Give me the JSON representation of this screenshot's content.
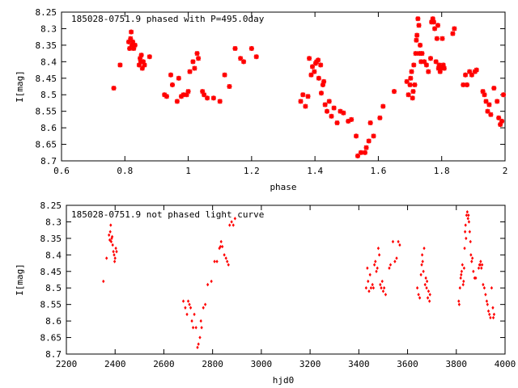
{
  "colors": {
    "points": "#ff0000",
    "axes": "#000000",
    "background": "#ffffff"
  },
  "chart_data": [
    {
      "type": "scatter",
      "title": "185028-0751.9 phased with P=495.0day",
      "xlabel": "phase",
      "ylabel": "I[mag]",
      "xlim": [
        0.6,
        2.0
      ],
      "ylim": [
        8.25,
        8.7
      ],
      "y_inverted": true,
      "grid": false,
      "marker": "star",
      "xticks": [
        "0.6",
        "0.8",
        "1",
        "1.2",
        "1.4",
        "1.6",
        "1.8",
        "2"
      ],
      "yticks": [
        "8.25",
        "8.3",
        "8.35",
        "8.4",
        "8.45",
        "8.5",
        "8.55",
        "8.6",
        "8.65",
        "8.7"
      ],
      "points": [
        [
          0.765,
          8.48
        ],
        [
          0.785,
          8.41
        ],
        [
          0.812,
          8.34
        ],
        [
          0.815,
          8.36
        ],
        [
          0.818,
          8.33
        ],
        [
          0.82,
          8.31
        ],
        [
          0.822,
          8.35
        ],
        [
          0.825,
          8.34
        ],
        [
          0.828,
          8.36
        ],
        [
          0.832,
          8.35
        ],
        [
          0.845,
          8.41
        ],
        [
          0.848,
          8.39
        ],
        [
          0.85,
          8.4
        ],
        [
          0.852,
          8.38
        ],
        [
          0.855,
          8.42
        ],
        [
          0.858,
          8.4
        ],
        [
          0.862,
          8.41
        ],
        [
          0.878,
          8.385
        ],
        [
          0.925,
          8.5
        ],
        [
          0.932,
          8.505
        ],
        [
          0.945,
          8.44
        ],
        [
          0.95,
          8.47
        ],
        [
          0.965,
          8.52
        ],
        [
          0.97,
          8.45
        ],
        [
          0.978,
          8.505
        ],
        [
          0.985,
          8.5
        ],
        [
          0.995,
          8.5
        ],
        [
          1.0,
          8.49
        ],
        [
          1.005,
          8.43
        ],
        [
          1.015,
          8.4
        ],
        [
          1.02,
          8.42
        ],
        [
          1.028,
          8.375
        ],
        [
          1.032,
          8.39
        ],
        [
          1.045,
          8.49
        ],
        [
          1.05,
          8.5
        ],
        [
          1.06,
          8.51
        ],
        [
          1.08,
          8.51
        ],
        [
          1.1,
          8.52
        ],
        [
          1.115,
          8.44
        ],
        [
          1.13,
          8.475
        ],
        [
          1.148,
          8.36
        ],
        [
          1.165,
          8.39
        ],
        [
          1.175,
          8.4
        ],
        [
          1.2,
          8.36
        ],
        [
          1.215,
          8.385
        ],
        [
          1.355,
          8.52
        ],
        [
          1.362,
          8.5
        ],
        [
          1.37,
          8.535
        ],
        [
          1.378,
          8.505
        ],
        [
          1.382,
          8.39
        ],
        [
          1.388,
          8.44
        ],
        [
          1.392,
          8.415
        ],
        [
          1.398,
          8.43
        ],
        [
          1.402,
          8.405
        ],
        [
          1.405,
          8.4
        ],
        [
          1.41,
          8.395
        ],
        [
          1.412,
          8.45
        ],
        [
          1.418,
          8.41
        ],
        [
          1.42,
          8.495
        ],
        [
          1.425,
          8.47
        ],
        [
          1.428,
          8.46
        ],
        [
          1.432,
          8.53
        ],
        [
          1.438,
          8.55
        ],
        [
          1.445,
          8.52
        ],
        [
          1.452,
          8.565
        ],
        [
          1.46,
          8.54
        ],
        [
          1.47,
          8.585
        ],
        [
          1.48,
          8.55
        ],
        [
          1.49,
          8.555
        ],
        [
          1.505,
          8.58
        ],
        [
          1.515,
          8.575
        ],
        [
          1.53,
          8.625
        ],
        [
          1.535,
          8.685
        ],
        [
          1.545,
          8.675
        ],
        [
          1.558,
          8.675
        ],
        [
          1.562,
          8.66
        ],
        [
          1.57,
          8.64
        ],
        [
          1.575,
          8.585
        ],
        [
          1.585,
          8.625
        ],
        [
          1.605,
          8.57
        ],
        [
          1.615,
          8.535
        ],
        [
          1.65,
          8.49
        ],
        [
          1.69,
          8.46
        ],
        [
          1.695,
          8.5
        ],
        [
          1.7,
          8.47
        ],
        [
          1.702,
          8.45
        ],
        [
          1.705,
          8.43
        ],
        [
          1.708,
          8.51
        ],
        [
          1.71,
          8.49
        ],
        [
          1.712,
          8.41
        ],
        [
          1.715,
          8.47
        ],
        [
          1.718,
          8.375
        ],
        [
          1.72,
          8.335
        ],
        [
          1.722,
          8.32
        ],
        [
          1.725,
          8.27
        ],
        [
          1.728,
          8.29
        ],
        [
          1.73,
          8.375
        ],
        [
          1.732,
          8.35
        ],
        [
          1.735,
          8.4
        ],
        [
          1.738,
          8.375
        ],
        [
          1.745,
          8.4
        ],
        [
          1.752,
          8.41
        ],
        [
          1.758,
          8.43
        ],
        [
          1.765,
          8.39
        ],
        [
          1.768,
          8.28
        ],
        [
          1.772,
          8.27
        ],
        [
          1.775,
          8.28
        ],
        [
          1.778,
          8.3
        ],
        [
          1.782,
          8.4
        ],
        [
          1.785,
          8.33
        ],
        [
          1.788,
          8.29
        ],
        [
          1.79,
          8.42
        ],
        [
          1.792,
          8.41
        ],
        [
          1.795,
          8.43
        ],
        [
          1.798,
          8.42
        ],
        [
          1.802,
          8.33
        ],
        [
          1.805,
          8.41
        ],
        [
          1.808,
          8.42
        ],
        [
          1.835,
          8.315
        ],
        [
          1.84,
          8.3
        ],
        [
          1.868,
          8.47
        ],
        [
          1.875,
          8.44
        ],
        [
          1.88,
          8.47
        ],
        [
          1.888,
          8.43
        ],
        [
          1.895,
          8.44
        ],
        [
          1.905,
          8.43
        ],
        [
          1.91,
          8.425
        ],
        [
          1.93,
          8.49
        ],
        [
          1.935,
          8.5
        ],
        [
          1.94,
          8.52
        ],
        [
          1.945,
          8.55
        ],
        [
          1.95,
          8.53
        ],
        [
          1.955,
          8.56
        ],
        [
          1.965,
          8.48
        ],
        [
          1.975,
          8.52
        ],
        [
          1.98,
          8.57
        ],
        [
          1.985,
          8.59
        ],
        [
          1.99,
          8.58
        ],
        [
          1.995,
          8.5
        ]
      ]
    },
    {
      "type": "scatter",
      "title": "185028-0751.9 not phased light curve",
      "xlabel": "hjd0",
      "ylabel": "I[mag]",
      "xlim": [
        2200,
        4000
      ],
      "ylim": [
        8.25,
        8.7
      ],
      "y_inverted": true,
      "grid": false,
      "marker": "diamond",
      "xticks": [
        "2200",
        "2400",
        "2600",
        "2800",
        "3000",
        "3200",
        "3400",
        "3600",
        "3800",
        "4000"
      ],
      "yticks": [
        "8.25",
        "8.3",
        "8.35",
        "8.4",
        "8.45",
        "8.5",
        "8.55",
        "8.6",
        "8.65",
        "8.7"
      ],
      "points": [
        [
          2352,
          8.48
        ],
        [
          2365,
          8.41
        ],
        [
          2375,
          8.34
        ],
        [
          2378,
          8.355
        ],
        [
          2380,
          8.33
        ],
        [
          2382,
          8.31
        ],
        [
          2384,
          8.36
        ],
        [
          2386,
          8.35
        ],
        [
          2388,
          8.345
        ],
        [
          2390,
          8.37
        ],
        [
          2393,
          8.39
        ],
        [
          2396,
          8.4
        ],
        [
          2398,
          8.42
        ],
        [
          2400,
          8.41
        ],
        [
          2403,
          8.38
        ],
        [
          2406,
          8.39
        ],
        [
          2680,
          8.54
        ],
        [
          2688,
          8.56
        ],
        [
          2695,
          8.58
        ],
        [
          2700,
          8.54
        ],
        [
          2705,
          8.55
        ],
        [
          2710,
          8.56
        ],
        [
          2715,
          8.6
        ],
        [
          2720,
          8.62
        ],
        [
          2725,
          8.58
        ],
        [
          2732,
          8.62
        ],
        [
          2738,
          8.68
        ],
        [
          2742,
          8.67
        ],
        [
          2748,
          8.65
        ],
        [
          2752,
          8.6
        ],
        [
          2755,
          8.62
        ],
        [
          2762,
          8.56
        ],
        [
          2770,
          8.55
        ],
        [
          2780,
          8.49
        ],
        [
          2795,
          8.48
        ],
        [
          2808,
          8.42
        ],
        [
          2818,
          8.42
        ],
        [
          2828,
          8.38
        ],
        [
          2832,
          8.375
        ],
        [
          2835,
          8.36
        ],
        [
          2840,
          8.375
        ],
        [
          2848,
          8.4
        ],
        [
          2855,
          8.41
        ],
        [
          2860,
          8.42
        ],
        [
          2865,
          8.43
        ],
        [
          2870,
          8.31
        ],
        [
          2878,
          8.3
        ],
        [
          2885,
          8.31
        ],
        [
          2892,
          8.29
        ],
        [
          3430,
          8.5
        ],
        [
          3435,
          8.44
        ],
        [
          3438,
          8.48
        ],
        [
          3442,
          8.51
        ],
        [
          3446,
          8.46
        ],
        [
          3450,
          8.5
        ],
        [
          3456,
          8.49
        ],
        [
          3460,
          8.5
        ],
        [
          3464,
          8.43
        ],
        [
          3468,
          8.42
        ],
        [
          3472,
          8.45
        ],
        [
          3476,
          8.44
        ],
        [
          3480,
          8.38
        ],
        [
          3484,
          8.4
        ],
        [
          3488,
          8.49
        ],
        [
          3492,
          8.5
        ],
        [
          3496,
          8.48
        ],
        [
          3500,
          8.51
        ],
        [
          3504,
          8.5
        ],
        [
          3510,
          8.52
        ],
        [
          3525,
          8.44
        ],
        [
          3530,
          8.43
        ],
        [
          3540,
          8.36
        ],
        [
          3548,
          8.42
        ],
        [
          3555,
          8.41
        ],
        [
          3562,
          8.36
        ],
        [
          3568,
          8.37
        ],
        [
          3640,
          8.5
        ],
        [
          3645,
          8.52
        ],
        [
          3650,
          8.53
        ],
        [
          3655,
          8.46
        ],
        [
          3658,
          8.43
        ],
        [
          3660,
          8.4
        ],
        [
          3662,
          8.42
        ],
        [
          3665,
          8.45
        ],
        [
          3668,
          8.38
        ],
        [
          3672,
          8.49
        ],
        [
          3675,
          8.47
        ],
        [
          3678,
          8.5
        ],
        [
          3680,
          8.48
        ],
        [
          3683,
          8.53
        ],
        [
          3686,
          8.51
        ],
        [
          3690,
          8.54
        ],
        [
          3692,
          8.52
        ],
        [
          3810,
          8.54
        ],
        [
          3812,
          8.55
        ],
        [
          3815,
          8.5
        ],
        [
          3818,
          8.47
        ],
        [
          3820,
          8.46
        ],
        [
          3822,
          8.45
        ],
        [
          3825,
          8.43
        ],
        [
          3828,
          8.49
        ],
        [
          3830,
          8.48
        ],
        [
          3832,
          8.44
        ],
        [
          3834,
          8.38
        ],
        [
          3836,
          8.33
        ],
        [
          3838,
          8.31
        ],
        [
          3840,
          8.35
        ],
        [
          3842,
          8.28
        ],
        [
          3845,
          8.27
        ],
        [
          3848,
          8.29
        ],
        [
          3850,
          8.28
        ],
        [
          3852,
          8.3
        ],
        [
          3855,
          8.33
        ],
        [
          3858,
          8.36
        ],
        [
          3860,
          8.4
        ],
        [
          3863,
          8.42
        ],
        [
          3866,
          8.41
        ],
        [
          3870,
          8.45
        ],
        [
          3875,
          8.47
        ],
        [
          3880,
          8.47
        ],
        [
          3892,
          8.44
        ],
        [
          3895,
          8.43
        ],
        [
          3898,
          8.43
        ],
        [
          3900,
          8.42
        ],
        [
          3903,
          8.44
        ],
        [
          3906,
          8.43
        ],
        [
          3910,
          8.49
        ],
        [
          3915,
          8.5
        ],
        [
          3920,
          8.52
        ],
        [
          3925,
          8.54
        ],
        [
          3928,
          8.55
        ],
        [
          3932,
          8.57
        ],
        [
          3936,
          8.58
        ],
        [
          3940,
          8.59
        ],
        [
          3945,
          8.5
        ],
        [
          3950,
          8.56
        ],
        [
          3952,
          8.59
        ],
        [
          3955,
          8.58
        ]
      ]
    }
  ]
}
